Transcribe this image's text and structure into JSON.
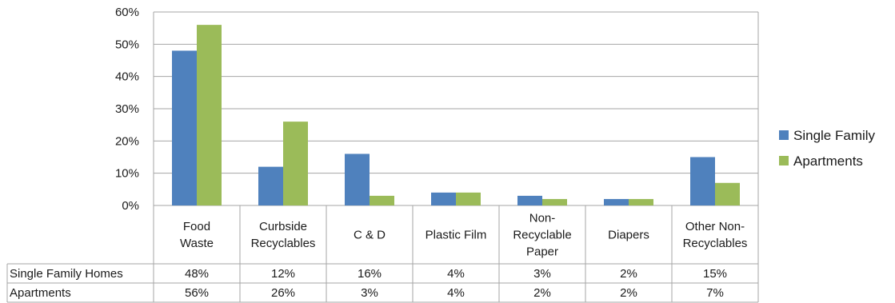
{
  "chart_data": {
    "type": "bar",
    "categories": [
      [
        "Food",
        "Waste"
      ],
      [
        "Curbside",
        "Recyclables"
      ],
      [
        "C & D"
      ],
      [
        "Plastic Film"
      ],
      [
        "Non-",
        "Recyclable",
        "Paper"
      ],
      [
        "Diapers"
      ],
      [
        "Other Non-",
        "Recyclables"
      ]
    ],
    "series": [
      {
        "name": "Single Family",
        "color": "#4f81bd",
        "values": [
          48,
          12,
          16,
          4,
          3,
          2,
          15
        ]
      },
      {
        "name": "Apartments",
        "color": "#9bbb59",
        "values": [
          56,
          26,
          3,
          4,
          2,
          2,
          7
        ]
      }
    ],
    "yticks": [
      "0%",
      "10%",
      "20%",
      "30%",
      "40%",
      "50%",
      "60%"
    ],
    "ylim": [
      0,
      60
    ],
    "legend_position": "right",
    "data_table": {
      "rows": [
        {
          "label": "Single Family Homes",
          "values": [
            "48%",
            "12%",
            "16%",
            "4%",
            "3%",
            "2%",
            "15%"
          ]
        },
        {
          "label": "Apartments",
          "values": [
            "56%",
            "26%",
            "3%",
            "4%",
            "2%",
            "2%",
            "7%"
          ]
        }
      ]
    }
  }
}
